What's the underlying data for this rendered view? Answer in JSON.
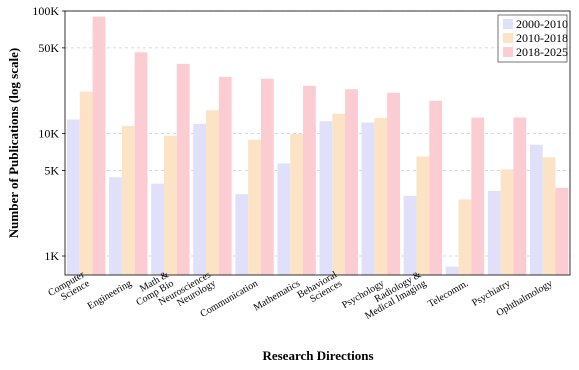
{
  "chart_data": {
    "type": "bar",
    "y_scale": "log",
    "ylim": [
      700,
      100000
    ],
    "grid": "horizontal dashed",
    "legend_position": "top-right",
    "xlabel": "Research Directions",
    "ylabel": "Number of Publications (log scale)",
    "yticks": [
      {
        "value": 1000,
        "label": "1K"
      },
      {
        "value": 5000,
        "label": "5K"
      },
      {
        "value": 10000,
        "label": "10K"
      },
      {
        "value": 50000,
        "label": "50K"
      },
      {
        "value": 100000,
        "label": "100K"
      }
    ],
    "categories": [
      [
        "Computer",
        "Science"
      ],
      [
        "Engineering"
      ],
      [
        "Math &",
        "Comp Bio"
      ],
      [
        "Neurosciences",
        "Neurology"
      ],
      [
        "Communication"
      ],
      [
        "Mathematics"
      ],
      [
        "Behavioral",
        "Sciences"
      ],
      [
        "Psychology"
      ],
      [
        "Radiology &",
        "Medical Imaging"
      ],
      [
        "Telecomm."
      ],
      [
        "Psychiatry"
      ],
      [
        "Ophthalmology"
      ]
    ],
    "series": [
      {
        "name": "2000-2010",
        "color": "#e0e0fb",
        "values": [
          13000,
          4400,
          3900,
          12000,
          3200,
          5700,
          12600,
          12300,
          3100,
          820,
          3400,
          8100
        ]
      },
      {
        "name": "2010-2018",
        "color": "#fde3c5",
        "values": [
          22000,
          11500,
          9600,
          15500,
          8900,
          9900,
          14500,
          13400,
          6500,
          2900,
          5100,
          6400
        ]
      },
      {
        "name": "2018-2025",
        "color": "#fbccd1",
        "values": [
          90000,
          46000,
          37000,
          29000,
          28000,
          24500,
          23000,
          21500,
          18500,
          13500,
          13500,
          3600
        ]
      }
    ]
  }
}
